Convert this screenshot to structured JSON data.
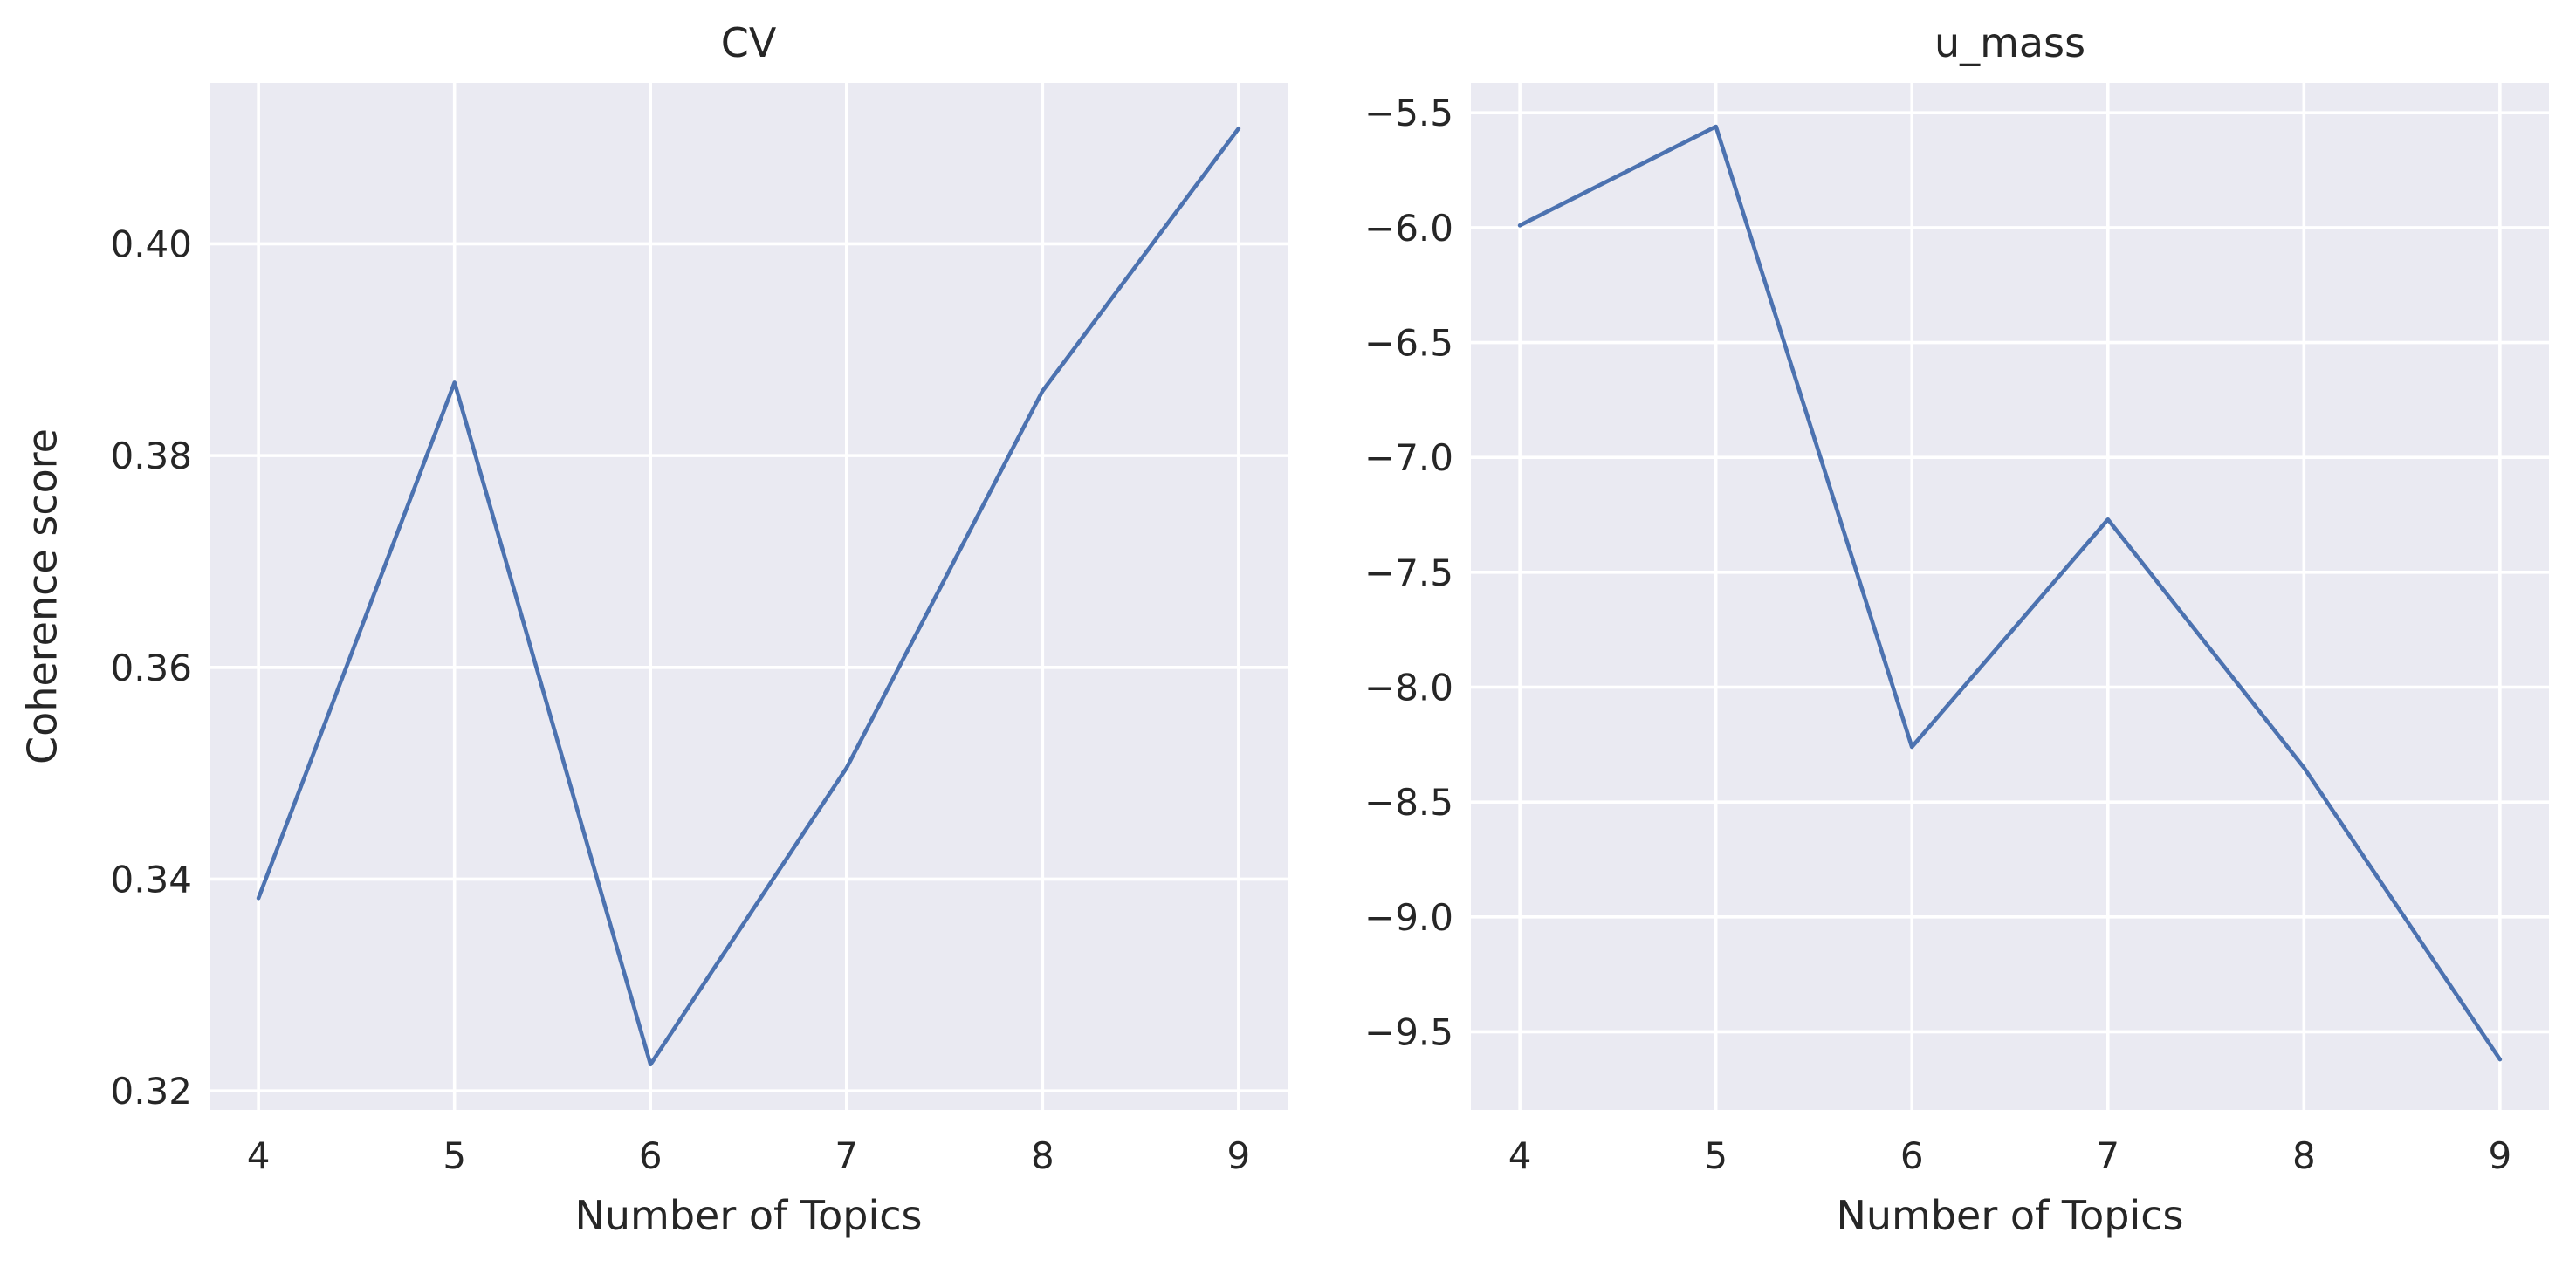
{
  "figure": {
    "background": "#ffffff",
    "plot_background": "#eaeaf2",
    "grid_color": "#ffffff",
    "line_color": "#4c72b0",
    "text_color": "#262626"
  },
  "chart_data": [
    {
      "type": "line",
      "title": "CV",
      "xlabel": "Number of Topics",
      "ylabel": "Coherence score",
      "grid": true,
      "x": [
        4,
        5,
        6,
        7,
        8,
        9
      ],
      "x_ticks": [
        "4",
        "5",
        "6",
        "7",
        "8",
        "9"
      ],
      "xlim": [
        3.75,
        9.25
      ],
      "ylim": [
        0.3182,
        0.4152
      ],
      "y_ticks": [
        0.32,
        0.34,
        0.36,
        0.38,
        0.4
      ],
      "y_tick_labels": [
        "0.32",
        "0.34",
        "0.36",
        "0.38",
        "0.40"
      ],
      "series": [
        {
          "values": [
            0.3382,
            0.3869,
            0.3225,
            0.3505,
            0.3861,
            0.4109
          ]
        }
      ]
    },
    {
      "type": "line",
      "title": "u_mass",
      "xlabel": "Number of Topics",
      "ylabel": "",
      "grid": true,
      "x": [
        4,
        5,
        6,
        7,
        8,
        9
      ],
      "x_ticks": [
        "4",
        "5",
        "6",
        "7",
        "8",
        "9"
      ],
      "xlim": [
        3.75,
        9.25
      ],
      "ylim": [
        -9.84,
        -5.37
      ],
      "y_ticks": [
        -9.5,
        -9.0,
        -8.5,
        -8.0,
        -7.5,
        -7.0,
        -6.5,
        -6.0,
        -5.5
      ],
      "y_tick_labels": [
        "−9.5",
        "−9.0",
        "−8.5",
        "−8.0",
        "−7.5",
        "−7.0",
        "−6.5",
        "−6.0",
        "−5.5"
      ],
      "series": [
        {
          "values": [
            -5.99,
            -5.56,
            -8.26,
            -7.27,
            -8.35,
            -9.62
          ]
        }
      ]
    }
  ]
}
